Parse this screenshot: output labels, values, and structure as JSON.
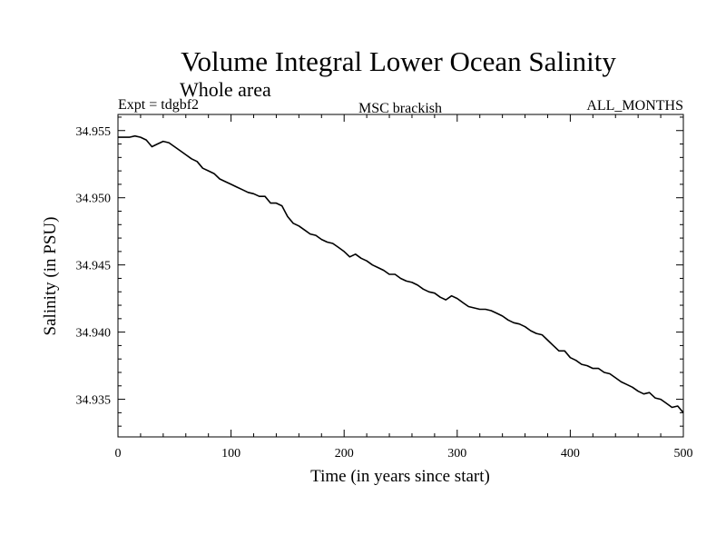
{
  "chart_data": {
    "type": "line",
    "title": "Volume Integral Lower Ocean Salinity",
    "subtitle": "Whole area",
    "header_left": "Expt = tdgbf2",
    "header_center": "MSC brackish",
    "header_right": "ALL_MONTHS",
    "xlabel": "Time (in years since start)",
    "ylabel": "Salinity (in PSU)",
    "xlim": [
      0,
      500
    ],
    "ylim": [
      34.9322,
      34.9562
    ],
    "xticks": [
      0,
      100,
      200,
      300,
      400,
      500
    ],
    "xtick_labels": [
      "0",
      "100",
      "200",
      "300",
      "400",
      "500"
    ],
    "yticks": [
      34.935,
      34.94,
      34.945,
      34.95,
      34.955
    ],
    "ytick_labels": [
      "34.935",
      "34.940",
      "34.945",
      "34.950",
      "34.955"
    ],
    "grid": false,
    "series": [
      {
        "name": "salinity",
        "x": [
          0,
          10,
          15,
          20,
          25,
          30,
          35,
          40,
          45,
          50,
          55,
          60,
          65,
          70,
          75,
          80,
          85,
          90,
          95,
          100,
          105,
          110,
          115,
          120,
          125,
          130,
          135,
          140,
          145,
          150,
          155,
          160,
          165,
          170,
          175,
          180,
          185,
          190,
          195,
          200,
          205,
          210,
          215,
          220,
          225,
          230,
          235,
          240,
          245,
          250,
          255,
          260,
          265,
          270,
          275,
          280,
          285,
          290,
          295,
          300,
          305,
          310,
          315,
          320,
          325,
          330,
          335,
          340,
          345,
          350,
          355,
          360,
          365,
          370,
          375,
          380,
          385,
          390,
          395,
          400,
          405,
          410,
          415,
          420,
          425,
          430,
          435,
          440,
          445,
          450,
          455,
          460,
          465,
          470,
          475,
          480,
          485,
          490,
          495,
          500
        ],
        "y": [
          34.9545,
          34.9545,
          34.9546,
          34.9545,
          34.9543,
          34.9538,
          34.954,
          34.9542,
          34.9541,
          34.9538,
          34.9535,
          34.9532,
          34.9529,
          34.9527,
          34.9522,
          34.952,
          34.9518,
          34.9514,
          34.9512,
          34.951,
          34.9508,
          34.9506,
          34.9504,
          34.9503,
          34.9501,
          34.9501,
          34.9496,
          34.9496,
          34.9494,
          34.9486,
          34.9481,
          34.9479,
          34.9476,
          34.9473,
          34.9472,
          34.9469,
          34.9467,
          34.9466,
          34.9463,
          34.946,
          34.9456,
          34.9458,
          34.9455,
          34.9453,
          34.945,
          34.9448,
          34.9446,
          34.9443,
          34.9443,
          34.944,
          34.9438,
          34.9437,
          34.9435,
          34.9432,
          34.943,
          34.9429,
          34.9426,
          34.9424,
          34.9427,
          34.9425,
          34.9422,
          34.9419,
          34.9418,
          34.9417,
          34.9417,
          34.9416,
          34.9414,
          34.9412,
          34.9409,
          34.9407,
          34.9406,
          34.9404,
          34.9401,
          34.9399,
          34.9398,
          34.9394,
          34.939,
          34.9386,
          34.9386,
          34.9381,
          34.9379,
          34.9376,
          34.9375,
          34.9373,
          34.9373,
          34.937,
          34.9369,
          34.9366,
          34.9363,
          34.9361,
          34.9359,
          34.9356,
          34.9354,
          34.9355,
          34.9351,
          34.935,
          34.9347,
          34.9344,
          34.9345,
          34.934
        ]
      }
    ]
  }
}
